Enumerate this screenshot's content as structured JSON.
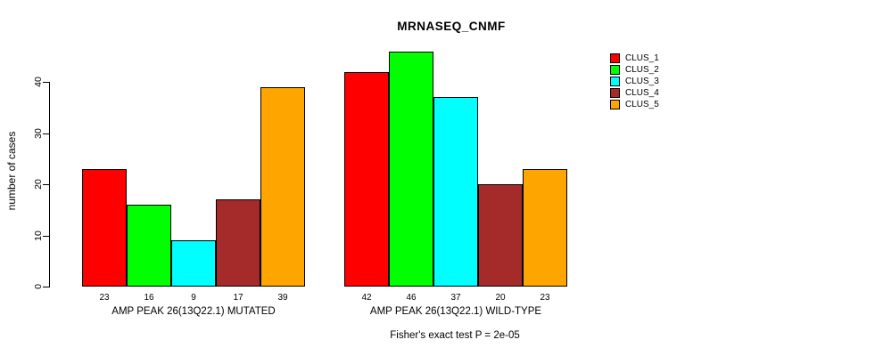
{
  "chart_data": {
    "type": "bar",
    "title": "MRNASEQ_CNMF",
    "ylabel": "number of cases",
    "note": "Fisher's exact test P = 2e-05",
    "yticks": [
      0,
      10,
      20,
      30,
      40
    ],
    "ylim": [
      0,
      46
    ],
    "grid": false,
    "legend_position": "right",
    "bar_value_labels": true,
    "groups": [
      {
        "label": "AMP PEAK 26(13Q22.1) MUTATED",
        "values": [
          23,
          16,
          9,
          17,
          39
        ]
      },
      {
        "label": "AMP PEAK 26(13Q22.1) WILD-TYPE",
        "values": [
          42,
          46,
          37,
          20,
          23
        ]
      }
    ],
    "series": [
      {
        "name": "CLUS_1",
        "color": "#FF0000"
      },
      {
        "name": "CLUS_2",
        "color": "#00FF00"
      },
      {
        "name": "CLUS_3",
        "color": "#00FFFF"
      },
      {
        "name": "CLUS_4",
        "color": "#A52A2A"
      },
      {
        "name": "CLUS_5",
        "color": "#FFA500"
      }
    ]
  }
}
